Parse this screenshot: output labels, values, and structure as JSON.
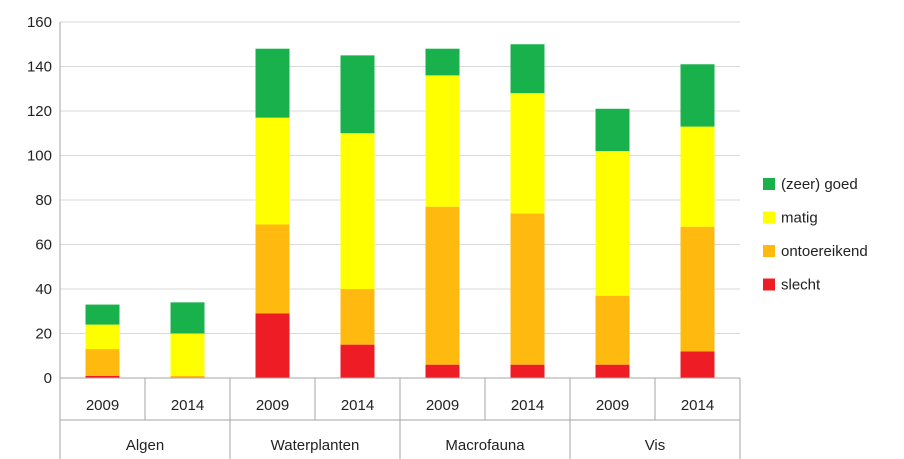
{
  "chart_data": {
    "type": "bar",
    "stacked": true,
    "groups": [
      "Algen",
      "Waterplanten",
      "Macrofauna",
      "Vis"
    ],
    "categories": [
      "2009",
      "2014",
      "2009",
      "2014",
      "2009",
      "2014",
      "2009",
      "2014"
    ],
    "category_group": [
      0,
      0,
      1,
      1,
      2,
      2,
      3,
      3
    ],
    "series": [
      {
        "name": "slecht",
        "color": "#ee1c25",
        "values": [
          1,
          0,
          29,
          15,
          6,
          6,
          6,
          12
        ]
      },
      {
        "name": "ontoereikend",
        "color": "#ffb90f",
        "values": [
          12,
          1,
          40,
          25,
          71,
          68,
          31,
          56
        ]
      },
      {
        "name": "matig",
        "color": "#ffff00",
        "values": [
          11,
          19,
          48,
          70,
          59,
          54,
          65,
          45
        ]
      },
      {
        "name": "(zeer) goed",
        "color": "#19b14c",
        "values": [
          9,
          14,
          31,
          35,
          12,
          22,
          19,
          28
        ]
      }
    ],
    "legend_order": [
      "(zeer) goed",
      "matig",
      "ontoereikend",
      "slecht"
    ],
    "ylim": [
      0,
      160
    ],
    "yticks": [
      "0",
      "20",
      "40",
      "60",
      "80",
      "100",
      "120",
      "140",
      "160"
    ],
    "grid": true,
    "legend_position": "right",
    "title": "",
    "xlabel": "",
    "ylabel": ""
  }
}
